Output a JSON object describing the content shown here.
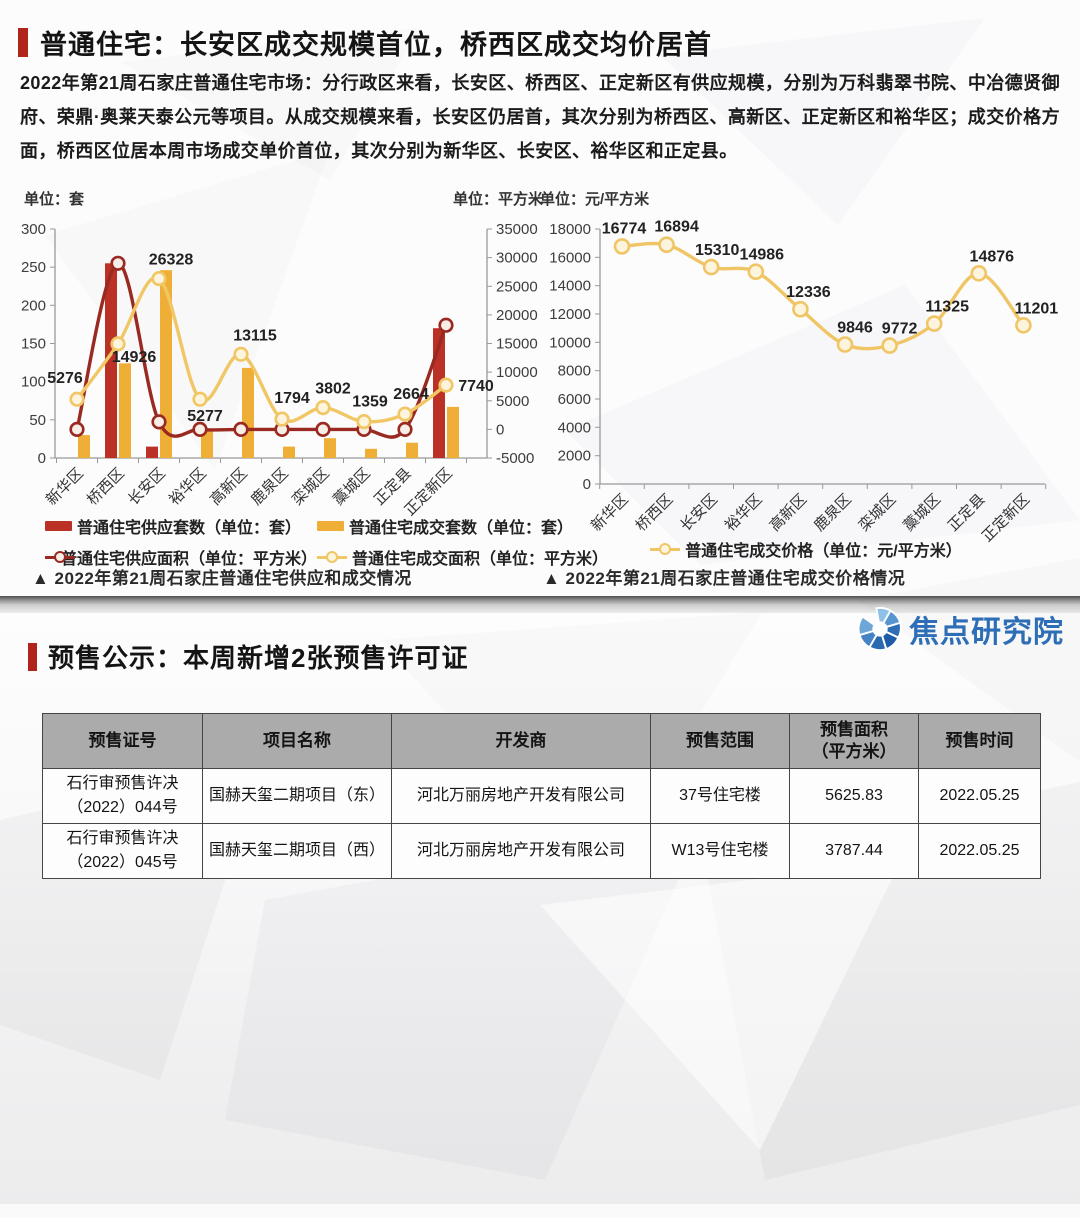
{
  "sections": {
    "residential": {
      "title": "普通住宅：长安区成交规模首位，桥西区成交均价居首",
      "intro": "2022年第21周石家庄普通住宅市场：分行政区来看，长安区、桥西区、正定新区有供应规模，分别为万科翡翠书院、中冶德贤御府、荣鼎·奥莱天泰公元等项目。从成交规模来看，长安区仍居首，其次分别为桥西区、高新区、正定新区和裕华区；成交价格方面，桥西区位居本周市场成交单价首位，其次分别为新华区、长安区、裕华区和正定县。"
    },
    "presale": {
      "title": "预售公示：本周新增2张预售许可证"
    }
  },
  "logo": {
    "text": "焦点研究院",
    "color": "#2e6eb6"
  },
  "colors": {
    "accent_red": "#b0241c",
    "axis_gray": "#999999",
    "supply_bar": "#bb3125",
    "deal_bar": "#efae35",
    "supply_line": "#9a2a21",
    "deal_line": "#f1c765",
    "price_line": "#f0c566",
    "table_header_bg": "#ababab"
  },
  "chart_data": [
    {
      "type": "bar",
      "subtype": "bar+line combo, dual y-axis",
      "caption": "▲ 2022年第21周石家庄普通住宅供应和成交情况",
      "unit_left": "单位：套",
      "unit_right": "单位：平方米",
      "categories": [
        "新华区",
        "桥西区",
        "长安区",
        "裕华区",
        "高新区",
        "鹿泉区",
        "栾城区",
        "藁城区",
        "正定县",
        "正定新区"
      ],
      "left_axis": {
        "min": 0,
        "max": 300,
        "step": 50
      },
      "right_axis": {
        "min": -5000,
        "max": 35000,
        "step": 5000
      },
      "grid": false,
      "legend_position": "bottom",
      "series": [
        {
          "name": "普通住宅供应套数（单位：套）",
          "type": "bar",
          "axis": "left",
          "color": "#bb3125",
          "values": [
            0,
            255,
            15,
            0,
            0,
            0,
            0,
            0,
            0,
            170
          ]
        },
        {
          "name": "普通住宅成交套数（单位：套）",
          "type": "bar",
          "axis": "left",
          "color": "#efae35",
          "values": [
            30,
            124,
            246,
            35,
            118,
            15,
            26,
            12,
            20,
            67
          ]
        },
        {
          "name": "普通住宅供应面积（单位：平方米）",
          "type": "line",
          "axis": "right",
          "color": "#9a2a21",
          "marker_fill": "#f7efe7",
          "values": [
            0,
            29000,
            1300,
            0,
            0,
            0,
            0,
            0,
            0,
            18200
          ]
        },
        {
          "name": "普通住宅成交面积（单位：平方米）",
          "type": "line",
          "axis": "right",
          "color": "#f1c765",
          "marker_fill": "#fcf4dc",
          "labeled": true,
          "values": [
            5276,
            14926,
            26328,
            5277,
            13115,
            1794,
            3802,
            1359,
            2664,
            7740
          ]
        }
      ]
    },
    {
      "type": "line",
      "caption": "▲ 2022年第21周石家庄普通住宅成交价格情况",
      "unit_left": "单位：元/平方米",
      "categories": [
        "新华区",
        "桥西区",
        "长安区",
        "裕华区",
        "高新区",
        "鹿泉区",
        "栾城区",
        "藁城区",
        "正定县",
        "正定新区"
      ],
      "left_axis": {
        "min": 0,
        "max": 18000,
        "step": 2000
      },
      "grid": false,
      "legend_position": "bottom",
      "series": [
        {
          "name": "普通住宅成交价格（单位：元/平方米）",
          "type": "line",
          "axis": "left",
          "color": "#f0c566",
          "marker_fill": "#fcf4dc",
          "labeled": true,
          "values": [
            16774,
            16894,
            15310,
            14986,
            12336,
            9846,
            9772,
            11325,
            14876,
            11201
          ]
        }
      ]
    }
  ],
  "table": {
    "headers": [
      "预售证号",
      "项目名称",
      "开发商",
      "预售范围",
      "预售面积\n（平方米）",
      "预售时间"
    ],
    "rows": [
      [
        "石行审预售许决\n（2022）044号",
        "国赫天玺二期项目（东）",
        "河北万丽房地产开发有限公司",
        "37号住宅楼",
        "5625.83",
        "2022.05.25"
      ],
      [
        "石行审预售许决\n（2022）045号",
        "国赫天玺二期项目（西）",
        "河北万丽房地产开发有限公司",
        "W13号住宅楼",
        "3787.44",
        "2022.05.25"
      ]
    ]
  }
}
